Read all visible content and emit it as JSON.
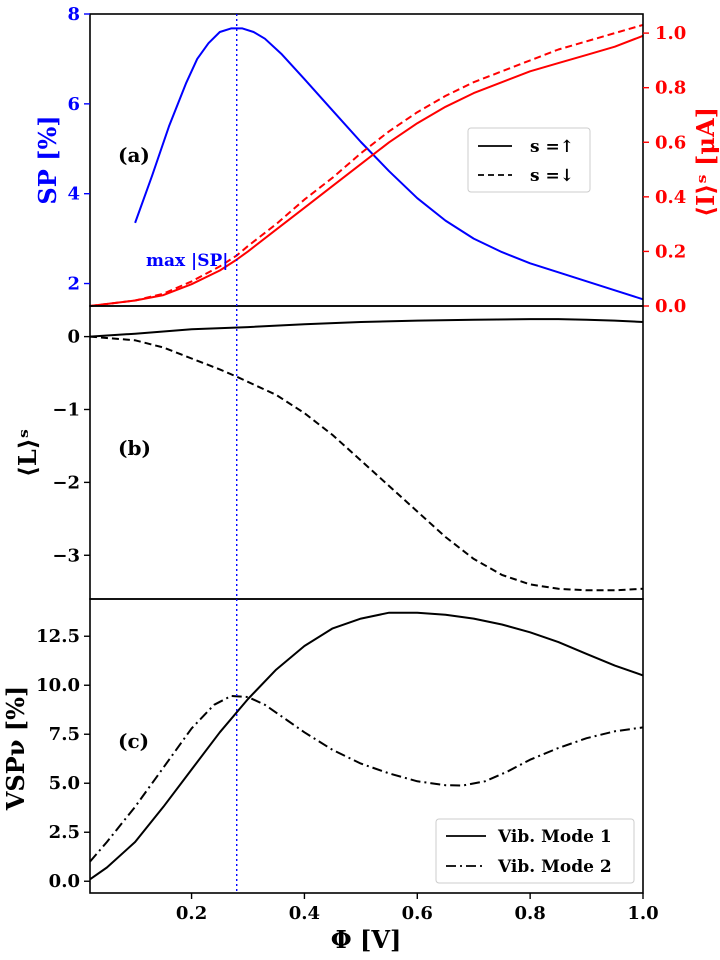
{
  "chart_data": [
    {
      "panel": "(a)",
      "type": "line",
      "xlim": [
        0.02,
        1.0
      ],
      "left_axis": {
        "label": "SP [%]",
        "color": "#0000ff",
        "ylim": [
          1.5,
          8.0
        ],
        "ticks": [
          2,
          4,
          6,
          8
        ],
        "tick_labels": [
          "2",
          "4",
          "6",
          "8"
        ]
      },
      "right_axis": {
        "label": "⟨I⟩ˢ [μA]",
        "color": "#ff0000",
        "ylim": [
          0.0,
          1.07
        ],
        "ticks": [
          0.0,
          0.2,
          0.4,
          0.6,
          0.8,
          1.0
        ],
        "tick_labels": [
          "0.0",
          "0.2",
          "0.4",
          "0.6",
          "0.8",
          "1.0"
        ]
      },
      "series": [
        {
          "name": "SP",
          "axis": "left",
          "color": "#0000ff",
          "style": "solid",
          "x": [
            0.1,
            0.13,
            0.16,
            0.19,
            0.21,
            0.23,
            0.25,
            0.27,
            0.29,
            0.31,
            0.33,
            0.36,
            0.4,
            0.45,
            0.5,
            0.55,
            0.6,
            0.65,
            0.7,
            0.75,
            0.8,
            0.85,
            0.9,
            0.95,
            1.0
          ],
          "y": [
            3.35,
            4.4,
            5.5,
            6.45,
            7.0,
            7.35,
            7.6,
            7.68,
            7.68,
            7.6,
            7.45,
            7.1,
            6.55,
            5.85,
            5.15,
            4.5,
            3.9,
            3.4,
            3.0,
            2.7,
            2.45,
            2.25,
            2.05,
            1.85,
            1.65
          ]
        },
        {
          "name": "I up",
          "axis": "right",
          "color": "#ff0000",
          "style": "solid",
          "x": [
            0.02,
            0.1,
            0.15,
            0.2,
            0.25,
            0.28,
            0.3,
            0.35,
            0.4,
            0.45,
            0.5,
            0.55,
            0.6,
            0.65,
            0.7,
            0.75,
            0.8,
            0.85,
            0.9,
            0.95,
            1.0
          ],
          "y": [
            0.0,
            0.02,
            0.04,
            0.08,
            0.13,
            0.17,
            0.2,
            0.28,
            0.36,
            0.44,
            0.52,
            0.6,
            0.67,
            0.73,
            0.78,
            0.82,
            0.86,
            0.89,
            0.92,
            0.95,
            0.99
          ]
        },
        {
          "name": "I down",
          "axis": "right",
          "color": "#ff0000",
          "style": "dashed",
          "x": [
            0.02,
            0.1,
            0.15,
            0.2,
            0.25,
            0.28,
            0.3,
            0.35,
            0.4,
            0.45,
            0.5,
            0.55,
            0.6,
            0.65,
            0.7,
            0.75,
            0.8,
            0.85,
            0.9,
            0.95,
            1.0
          ],
          "y": [
            0.0,
            0.02,
            0.045,
            0.09,
            0.145,
            0.185,
            0.22,
            0.3,
            0.39,
            0.47,
            0.56,
            0.64,
            0.71,
            0.77,
            0.82,
            0.86,
            0.9,
            0.94,
            0.97,
            1.0,
            1.03
          ]
        }
      ],
      "legend": {
        "location": "center-right",
        "entries": [
          {
            "label": "s =↑",
            "style": "solid"
          },
          {
            "label": "s =↓",
            "style": "dashed"
          }
        ]
      },
      "annotation": "max |SP|"
    },
    {
      "panel": "(b)",
      "type": "line",
      "xlim": [
        0.02,
        1.0
      ],
      "ylabel": "⟨L⟩ˢ",
      "ylim": [
        -3.6,
        0.42
      ],
      "yticks": [
        0,
        -1,
        -2,
        -3
      ],
      "ytick_labels": [
        "0",
        "−1",
        "−2",
        "−3"
      ],
      "series": [
        {
          "name": "L up",
          "color": "#000000",
          "style": "solid",
          "x": [
            0.02,
            0.1,
            0.2,
            0.3,
            0.4,
            0.5,
            0.6,
            0.7,
            0.8,
            0.85,
            0.9,
            0.95,
            1.0
          ],
          "y": [
            0.0,
            0.04,
            0.1,
            0.13,
            0.17,
            0.2,
            0.22,
            0.23,
            0.24,
            0.24,
            0.23,
            0.22,
            0.2
          ]
        },
        {
          "name": "L down",
          "color": "#000000",
          "style": "dashed",
          "x": [
            0.02,
            0.1,
            0.15,
            0.2,
            0.25,
            0.28,
            0.35,
            0.4,
            0.45,
            0.5,
            0.55,
            0.6,
            0.65,
            0.7,
            0.75,
            0.8,
            0.85,
            0.9,
            0.95,
            1.0
          ],
          "y": [
            0.0,
            -0.05,
            -0.15,
            -0.3,
            -0.45,
            -0.55,
            -0.8,
            -1.05,
            -1.35,
            -1.7,
            -2.05,
            -2.4,
            -2.75,
            -3.05,
            -3.27,
            -3.4,
            -3.46,
            -3.48,
            -3.48,
            -3.46
          ]
        }
      ]
    },
    {
      "panel": "(c)",
      "type": "line",
      "xlim": [
        0.02,
        1.0
      ],
      "xlabel": "Φ [V]",
      "xticks": [
        0.2,
        0.4,
        0.6,
        0.8,
        1.0
      ],
      "xtick_labels": [
        "0.2",
        "0.4",
        "0.6",
        "0.8",
        "1.0"
      ],
      "ylabel": "VSPν [%]",
      "ylim": [
        -0.6,
        14.4
      ],
      "yticks": [
        0.0,
        2.5,
        5.0,
        7.5,
        10.0,
        12.5
      ],
      "ytick_labels": [
        "0.0",
        "2.5",
        "5.0",
        "7.5",
        "10.0",
        "12.5"
      ],
      "series": [
        {
          "name": "Vib. Mode 1",
          "color": "#000000",
          "style": "solid",
          "x": [
            0.02,
            0.05,
            0.1,
            0.15,
            0.2,
            0.25,
            0.3,
            0.35,
            0.4,
            0.45,
            0.5,
            0.55,
            0.6,
            0.65,
            0.7,
            0.75,
            0.8,
            0.85,
            0.9,
            0.95,
            1.0
          ],
          "y": [
            0.1,
            0.7,
            2.0,
            3.8,
            5.7,
            7.6,
            9.3,
            10.8,
            12.0,
            12.9,
            13.4,
            13.7,
            13.7,
            13.6,
            13.4,
            13.1,
            12.7,
            12.2,
            11.6,
            11.0,
            10.5
          ]
        },
        {
          "name": "Vib. Mode 2",
          "color": "#000000",
          "style": "dashdot",
          "x": [
            0.02,
            0.05,
            0.1,
            0.15,
            0.2,
            0.24,
            0.27,
            0.3,
            0.33,
            0.37,
            0.4,
            0.45,
            0.5,
            0.55,
            0.6,
            0.65,
            0.68,
            0.72,
            0.76,
            0.8,
            0.85,
            0.9,
            0.95,
            1.0
          ],
          "y": [
            1.0,
            2.0,
            3.8,
            5.8,
            7.8,
            9.0,
            9.45,
            9.4,
            9.0,
            8.2,
            7.6,
            6.7,
            6.0,
            5.5,
            5.1,
            4.9,
            4.88,
            5.1,
            5.6,
            6.2,
            6.8,
            7.3,
            7.65,
            7.85
          ]
        }
      ],
      "legend": {
        "location": "lower-right",
        "entries": [
          {
            "label": "Vib. Mode 1",
            "style": "solid"
          },
          {
            "label": "Vib. Mode 2",
            "style": "dashdot"
          }
        ]
      }
    }
  ],
  "marker_line": {
    "x": 0.28,
    "color": "#0000ff",
    "style": "dotted"
  }
}
